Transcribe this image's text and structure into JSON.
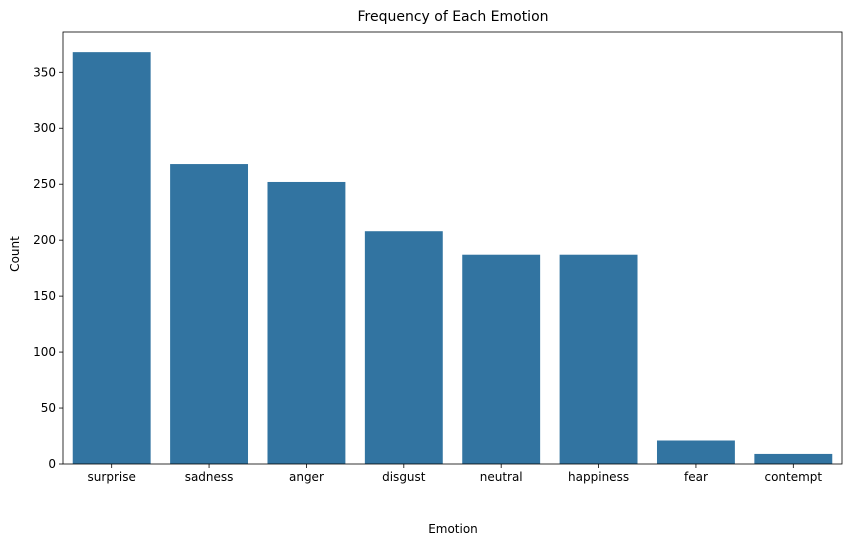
{
  "chart_data": {
    "type": "bar",
    "title": "Frequency of Each Emotion",
    "xlabel": "Emotion",
    "ylabel": "Count",
    "categories": [
      "surprise",
      "sadness",
      "anger",
      "disgust",
      "neutral",
      "happiness",
      "fear",
      "contempt"
    ],
    "values": [
      368,
      268,
      252,
      208,
      187,
      187,
      21,
      9
    ],
    "ylim": [
      0,
      386
    ],
    "yticks": [
      0,
      50,
      100,
      150,
      200,
      250,
      300,
      350
    ],
    "bar_color": "#3274a1",
    "grid": false,
    "legend": "none"
  }
}
